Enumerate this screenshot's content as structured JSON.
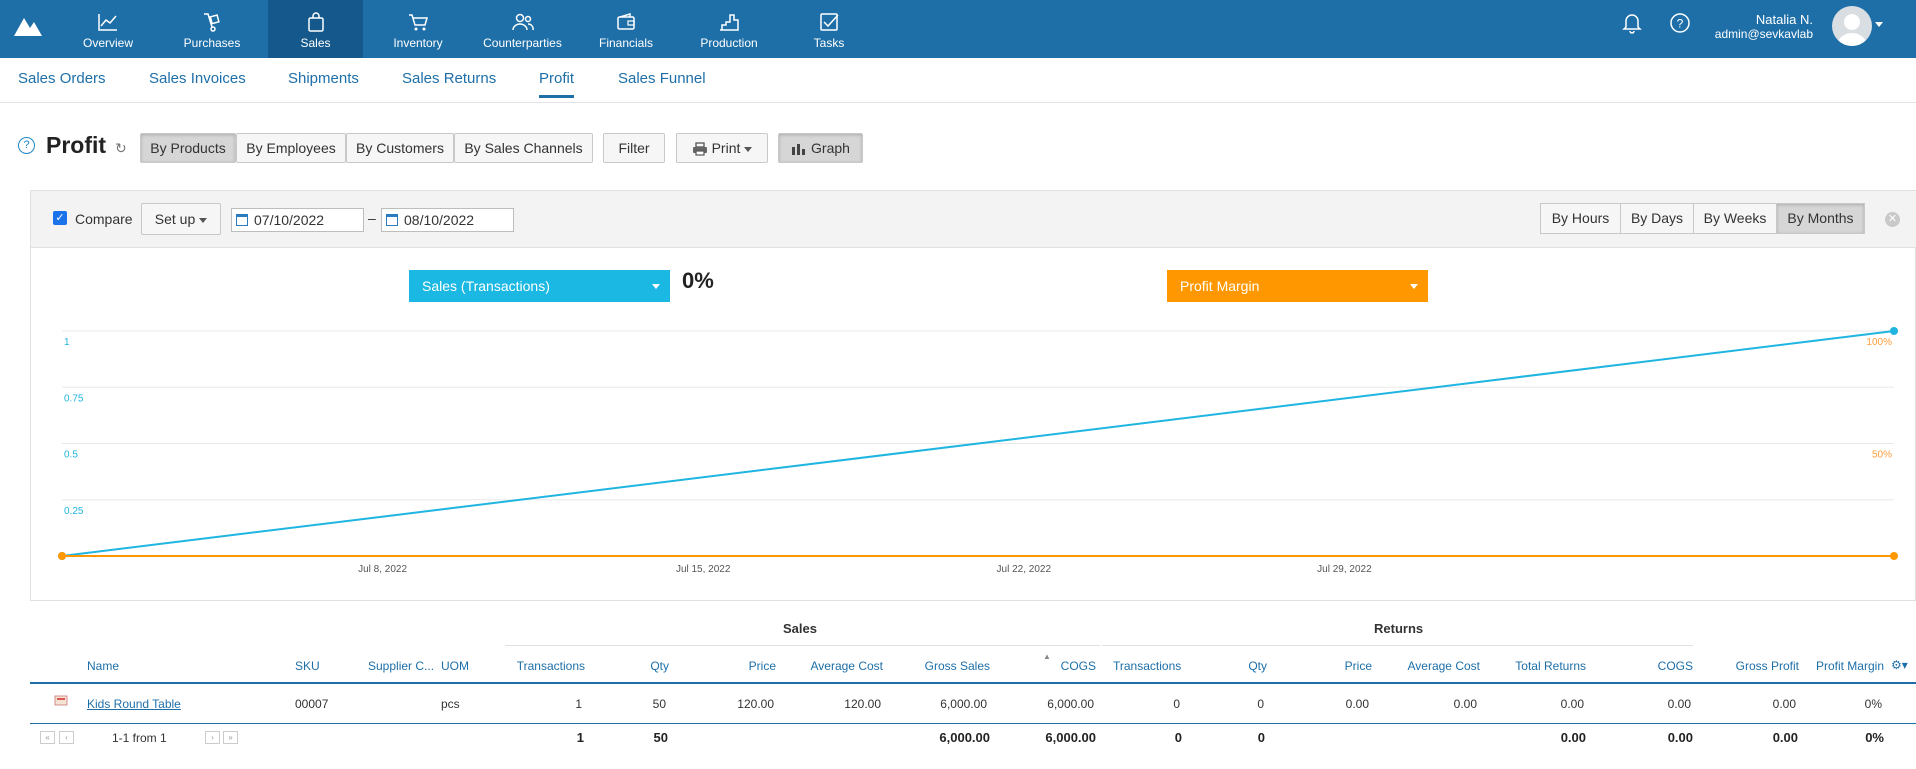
{
  "nav": {
    "items": [
      {
        "label": "Overview",
        "icon": "chart-line-icon"
      },
      {
        "label": "Purchases",
        "icon": "hand-truck-icon"
      },
      {
        "label": "Sales",
        "icon": "shopping-bag-icon"
      },
      {
        "label": "Inventory",
        "icon": "cart-icon"
      },
      {
        "label": "Counterparties",
        "icon": "people-icon"
      },
      {
        "label": "Financials",
        "icon": "wallet-icon"
      },
      {
        "label": "Production",
        "icon": "factory-icon"
      },
      {
        "label": "Tasks",
        "icon": "checkbox-icon"
      }
    ],
    "active": "Sales",
    "user_name": "Natalia N.",
    "user_email": "admin@sevkavlab"
  },
  "subnav": {
    "items": [
      "Sales Orders",
      "Sales Invoices",
      "Shipments",
      "Sales Returns",
      "Profit",
      "Sales Funnel"
    ],
    "active": "Profit"
  },
  "page": {
    "title": "Profit",
    "group_buttons": [
      "By Products",
      "By Employees",
      "By Customers",
      "By Sales Channels"
    ],
    "active_group": "By Products",
    "filter_label": "Filter",
    "print_label": "Print",
    "graph_label": "Graph"
  },
  "graph_panel": {
    "compare_label": "Compare",
    "compare_checked": true,
    "setup_label": "Set up",
    "date_from": "07/10/2022",
    "date_to": "08/10/2022",
    "date_sep": "–",
    "periods": [
      "By Hours",
      "By Days",
      "By Weeks",
      "By Months"
    ],
    "active_period": "By Months",
    "metric_left": "Sales (Transactions)",
    "metric_left_value": "0%",
    "metric_right": "Profit Margin"
  },
  "chart_data": {
    "type": "line",
    "x_ticks": [
      "Jul 8, 2022",
      "Jul 15, 2022",
      "Jul 22, 2022",
      "Jul 29, 2022"
    ],
    "x_range": [
      "2022-07-01",
      "2022-08-10"
    ],
    "y_left_ticks": [
      "0.25",
      "0.5",
      "0.75",
      "1"
    ],
    "y_left_range": [
      0,
      1
    ],
    "y_right_ticks": [
      "50%",
      "100%"
    ],
    "y_right_range": [
      0,
      100
    ],
    "series": [
      {
        "axis": "left",
        "color": "#1fb5e0",
        "x": [
          "2022-07-01",
          "2022-08-10"
        ],
        "y": [
          0,
          1
        ]
      },
      {
        "axis": "right",
        "color": "#ff9800",
        "x": [
          "2022-07-01",
          "2022-08-10"
        ],
        "y": [
          0,
          0
        ]
      }
    ],
    "grid": true
  },
  "table": {
    "group_sales": "Sales",
    "group_returns": "Returns",
    "columns": [
      "Name",
      "SKU",
      "Supplier C...",
      "UOM",
      "Transactions",
      "Qty",
      "Price",
      "Average Cost",
      "Gross Sales",
      "COGS",
      "Transactions",
      "Qty",
      "Price",
      "Average Cost",
      "Total Returns",
      "COGS",
      "Gross Profit",
      "Profit Margin"
    ],
    "rows": [
      {
        "name": "Kids Round Table",
        "sku": "00007",
        "supplier": "",
        "uom": "pcs",
        "s_transactions": "1",
        "s_qty": "50",
        "s_price": "120.00",
        "s_avg_cost": "120.00",
        "s_gross": "6,000.00",
        "s_cogs": "6,000.00",
        "r_transactions": "0",
        "r_qty": "0",
        "r_price": "0.00",
        "r_avg_cost": "0.00",
        "r_total": "0.00",
        "r_cogs": "0.00",
        "gross_profit": "0.00",
        "profit_margin": "0%"
      }
    ],
    "totals": {
      "s_transactions": "1",
      "s_qty": "50",
      "s_gross": "6,000.00",
      "s_cogs": "6,000.00",
      "r_transactions": "0",
      "r_qty": "0",
      "r_total": "0.00",
      "r_cogs": "0.00",
      "gross_profit": "0.00",
      "profit_margin": "0%"
    },
    "pagination": "1-1 from 1"
  }
}
